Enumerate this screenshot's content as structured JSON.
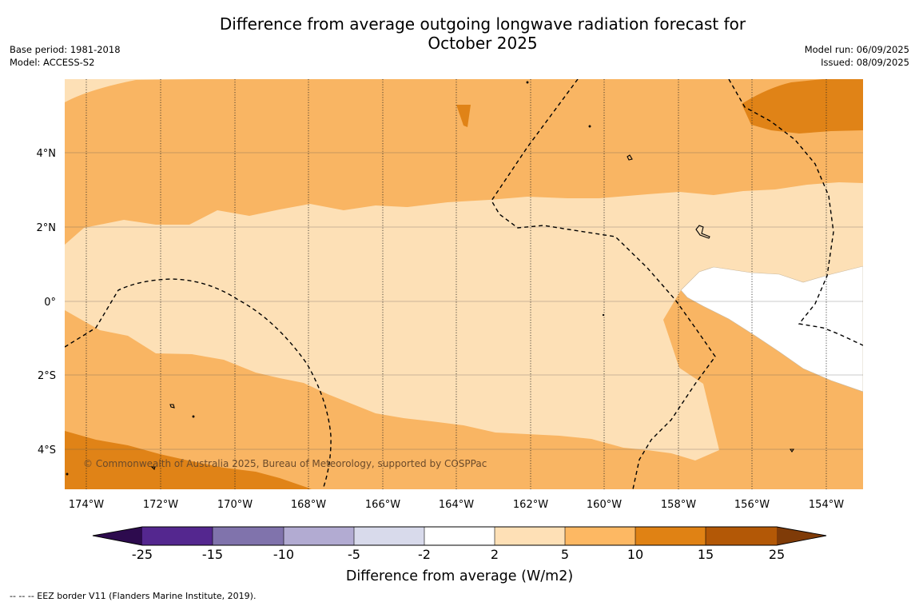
{
  "header": {
    "title_line1": "Difference from average outgoing longwave radiation forecast for",
    "title_line2": "October 2025",
    "base_period": "Base period: 1981-2018",
    "model": "Model: ACCESS-S2",
    "model_run": "Model run: 06/09/2025",
    "issued": "Issued: 08/09/2025"
  },
  "map": {
    "latitude_labels": [
      "4°N",
      "2°N",
      "0°",
      "2°S",
      "4°S"
    ],
    "longitude_labels": [
      "174°W",
      "172°W",
      "170°W",
      "168°W",
      "166°W",
      "164°W",
      "162°W",
      "160°W",
      "158°W",
      "156°W",
      "154°W"
    ],
    "credit": "© Commonwealth of Australia 2025, Bureau of Meteorology, supported by COSPPac",
    "colors": {
      "class_-2_2": "#ffffff",
      "class_2_5": "#fde0b6",
      "class_5_10": "#f9b563",
      "class_10_15": "#e08317",
      "gridline": "#000000",
      "eez": "#000000"
    }
  },
  "colorbar": {
    "ticks": [
      "-25",
      "-15",
      "-10",
      "-5",
      "-2",
      "2",
      "5",
      "10",
      "15",
      "25"
    ],
    "colors": {
      "extend_low": "#2d0b4e",
      "seg_1": "#54278f",
      "seg_2": "#8073ac",
      "seg_3": "#b2abd2",
      "seg_4": "#d8daeb",
      "seg_5": "#ffffff",
      "seg_6": "#fee0b6",
      "seg_7": "#fdb863",
      "seg_8": "#e08214",
      "seg_9": "#b35806",
      "extend_high": "#7f3b08"
    },
    "title": "Difference from average (W/m2)"
  },
  "footer": {
    "eez_note": "--  --  -- EEZ border V11 (Flanders Marine Institute, 2019)."
  }
}
